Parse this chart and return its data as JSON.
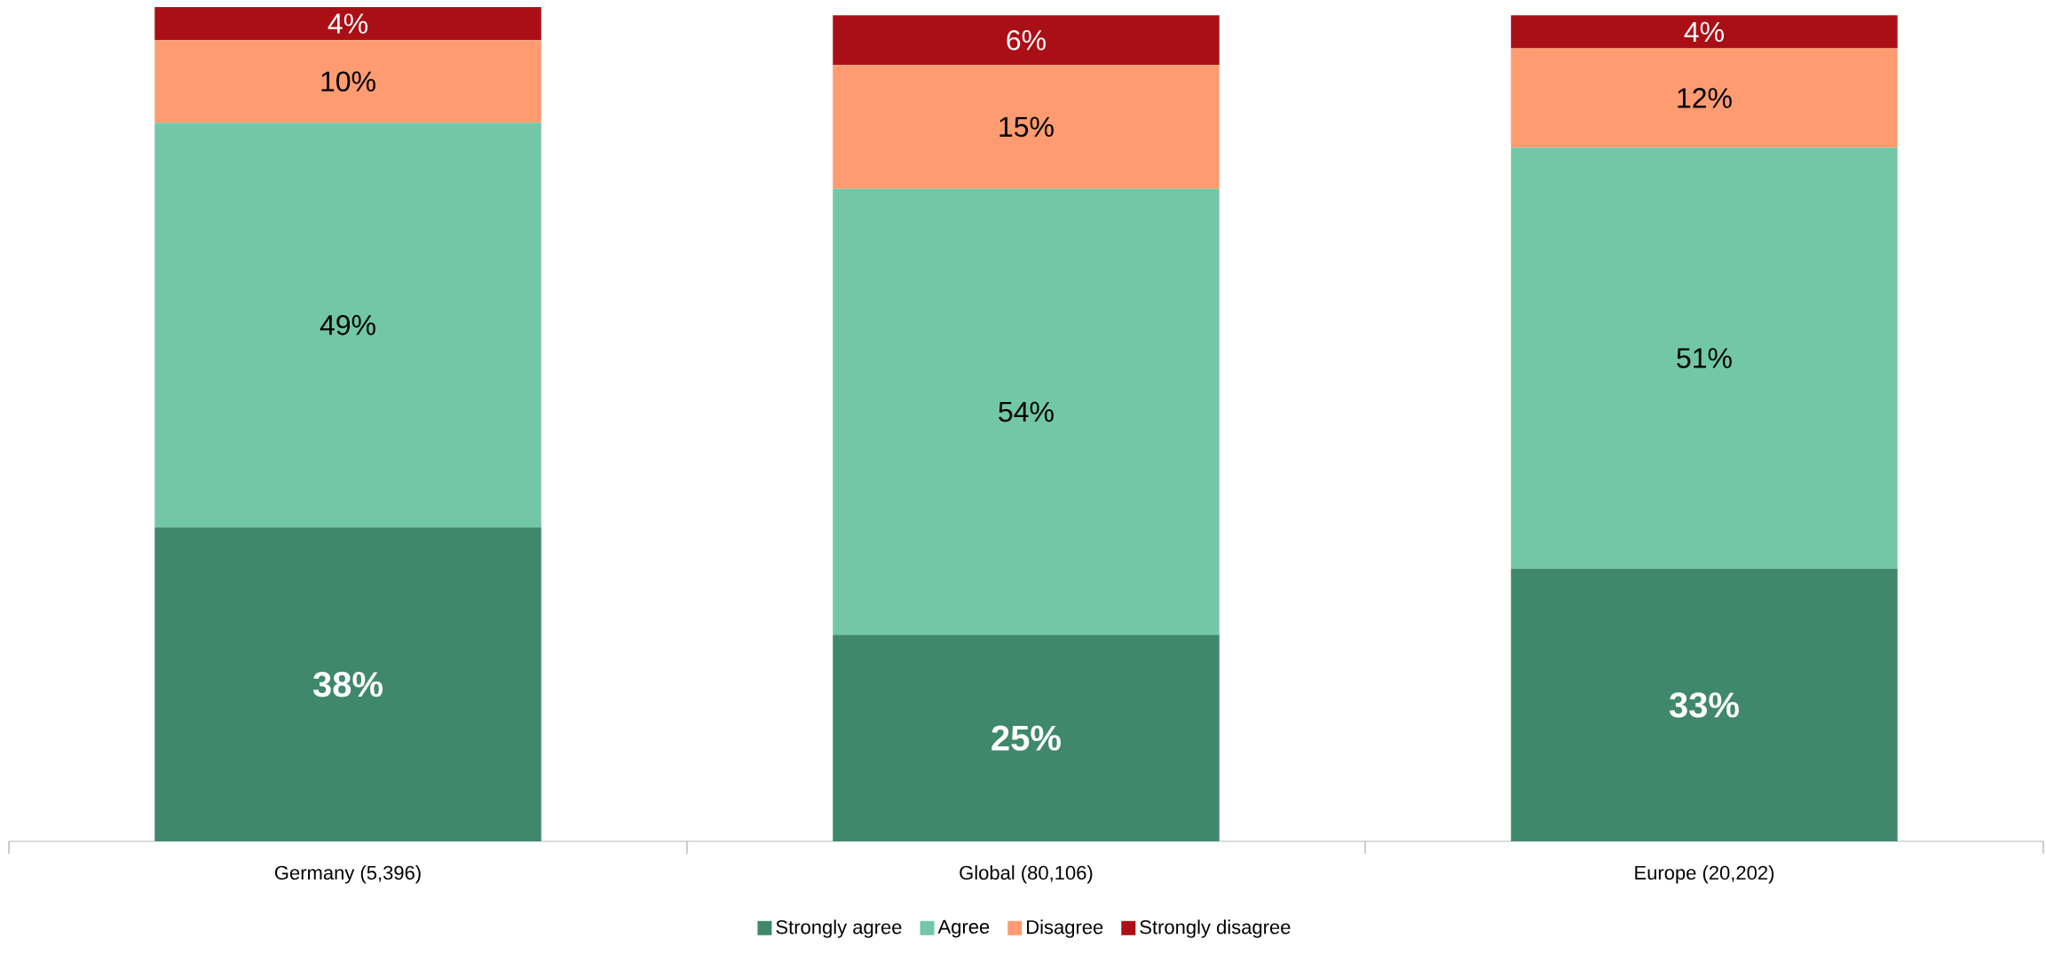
{
  "chart_data": {
    "type": "bar",
    "stacked": true,
    "categories": [
      "Germany (5,396)",
      "Global (80,106)",
      "Europe (20,202)"
    ],
    "series": [
      {
        "name": "Strongly agree",
        "color": "#3f886b",
        "values": [
          38,
          25,
          33
        ],
        "value_labels": [
          "38%",
          "25%",
          "33%"
        ]
      },
      {
        "name": "Agree",
        "color": "#72c8a6",
        "values": [
          49,
          54,
          51
        ],
        "value_labels": [
          "49%",
          "54%",
          "51%"
        ]
      },
      {
        "name": "Disagree",
        "color": "#fe9b71",
        "values": [
          10,
          15,
          12
        ],
        "value_labels": [
          "10%",
          "15%",
          "12%"
        ]
      },
      {
        "name": "Strongly disagree",
        "color": "#ab0f16",
        "values": [
          4,
          6,
          4
        ],
        "value_labels": [
          "4%",
          "6%",
          "4%"
        ]
      }
    ],
    "legend": "bottom"
  }
}
